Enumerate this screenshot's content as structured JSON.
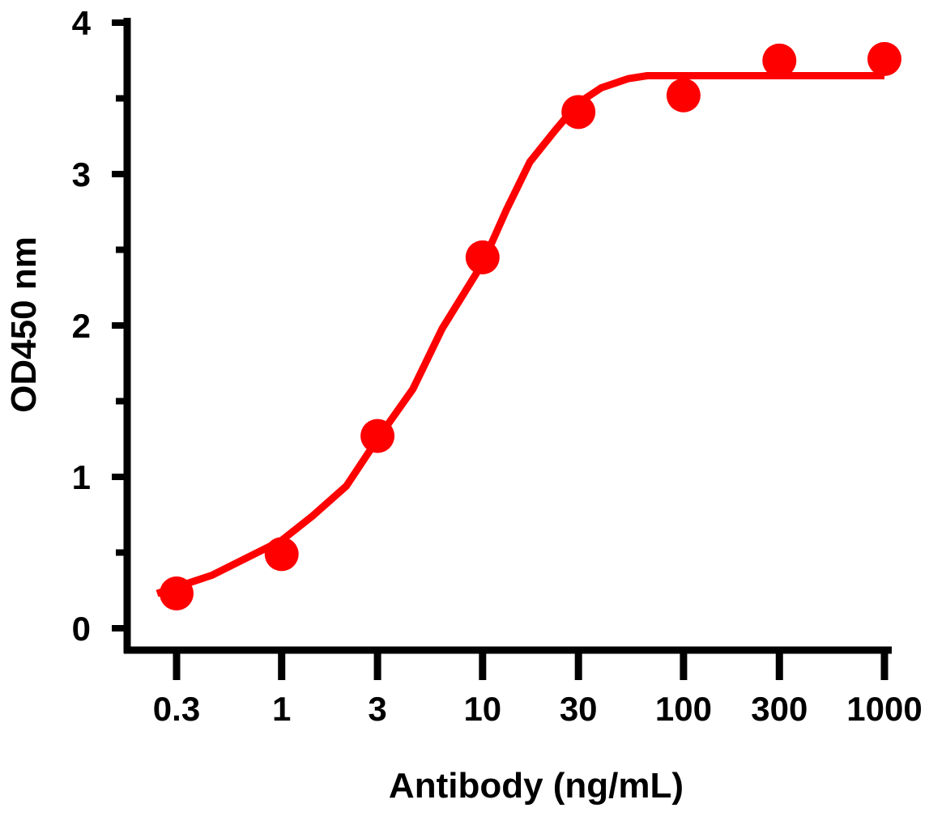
{
  "chart_data": {
    "type": "scatter",
    "title": "",
    "xlabel": "Antibody (ng/mL)",
    "ylabel": "OD450 nm",
    "x_scale": "log",
    "xlim": [
      0.3,
      1000
    ],
    "ylim": [
      0,
      4
    ],
    "x_ticks": [
      0.3,
      1,
      3,
      10,
      30,
      100,
      300,
      1000
    ],
    "x_tick_labels": [
      "0.3",
      "1",
      "3",
      "10",
      "30",
      "100",
      "300",
      "1000"
    ],
    "y_ticks": [
      0,
      1,
      2,
      3,
      4
    ],
    "y_tick_labels": [
      "0",
      "1",
      "2",
      "3",
      "4"
    ],
    "y_minor_ticks": [
      0.5,
      1.5,
      2.5,
      3.5
    ],
    "grid": false,
    "color": "#FF0000",
    "points": {
      "x": [
        0.3,
        1,
        3,
        10,
        30,
        100,
        300,
        1000
      ],
      "y": [
        0.23,
        0.49,
        1.27,
        2.45,
        3.41,
        3.52,
        3.75,
        3.76
      ]
    },
    "fit_curve": {
      "x": [
        0.24,
        0.45,
        1,
        1.42,
        2.1,
        3,
        4.5,
        6.3,
        10,
        13.1,
        17.2,
        23,
        30,
        39,
        53,
        66,
        1000
      ],
      "y": [
        0.23,
        0.35,
        0.58,
        0.74,
        0.94,
        1.25,
        1.58,
        1.98,
        2.41,
        2.76,
        3.08,
        3.29,
        3.47,
        3.57,
        3.63,
        3.65,
        3.65
      ]
    }
  }
}
